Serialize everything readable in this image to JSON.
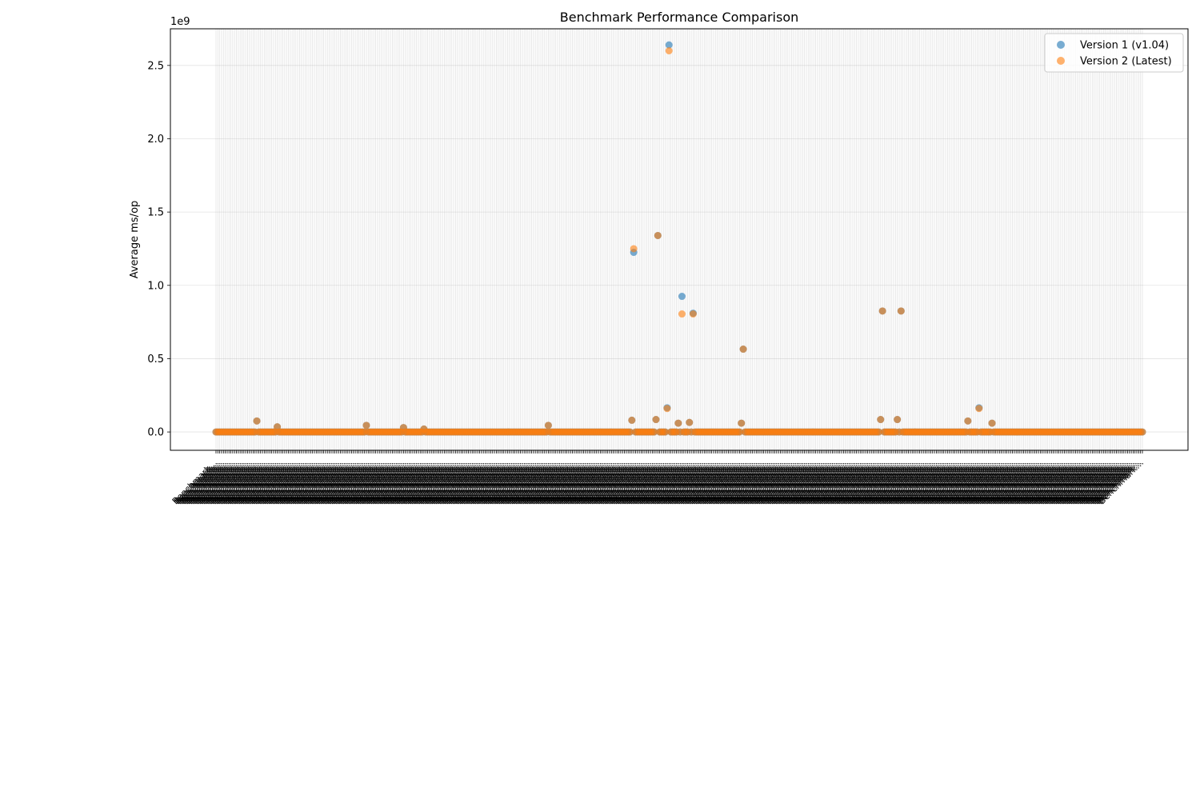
{
  "chart_data": {
    "type": "scatter",
    "title": "Benchmark Performance Comparison",
    "xlabel": "",
    "ylabel": "Average ms/op",
    "y_offset_text": "1e9",
    "ylim": [
      -125000000,
      2750000000
    ],
    "yticks": [
      0,
      500000000,
      1000000000,
      1500000000,
      2000000000,
      2500000000
    ],
    "ytick_labels": [
      "0.0",
      "0.5",
      "1.0",
      "1.5",
      "2.0",
      "2.5"
    ],
    "x_category_count": 500,
    "x_tick_label_text": "Benchmark…",
    "x_tick_rotation": "45deg",
    "grid": true,
    "legend_position": "top-right",
    "series": [
      {
        "name": "Version 1 (v1.04)",
        "color": "#1f77b4",
        "outliers": [
          {
            "x": 22,
            "y": 75000000
          },
          {
            "x": 33,
            "y": 35000000
          },
          {
            "x": 81,
            "y": 45000000
          },
          {
            "x": 101,
            "y": 30000000
          },
          {
            "x": 112,
            "y": 20000000
          },
          {
            "x": 179,
            "y": 45000000
          },
          {
            "x": 224,
            "y": 80000000
          },
          {
            "x": 225,
            "y": 1225000000
          },
          {
            "x": 237,
            "y": 85000000
          },
          {
            "x": 238,
            "y": 1340000000
          },
          {
            "x": 243,
            "y": 165000000
          },
          {
            "x": 244,
            "y": 2640000000
          },
          {
            "x": 249,
            "y": 60000000
          },
          {
            "x": 251,
            "y": 925000000
          },
          {
            "x": 255,
            "y": 65000000
          },
          {
            "x": 257,
            "y": 810000000
          },
          {
            "x": 283,
            "y": 60000000
          },
          {
            "x": 284,
            "y": 565000000
          },
          {
            "x": 358,
            "y": 85000000
          },
          {
            "x": 359,
            "y": 825000000
          },
          {
            "x": 367,
            "y": 85000000
          },
          {
            "x": 369,
            "y": 825000000
          },
          {
            "x": 405,
            "y": 75000000
          },
          {
            "x": 411,
            "y": 165000000
          },
          {
            "x": 418,
            "y": 60000000
          }
        ]
      },
      {
        "name": "Version 2 (Latest)",
        "color": "#ff7f0e",
        "outliers": [
          {
            "x": 22,
            "y": 75000000
          },
          {
            "x": 33,
            "y": 35000000
          },
          {
            "x": 81,
            "y": 45000000
          },
          {
            "x": 101,
            "y": 30000000
          },
          {
            "x": 112,
            "y": 20000000
          },
          {
            "x": 179,
            "y": 45000000
          },
          {
            "x": 224,
            "y": 80000000
          },
          {
            "x": 225,
            "y": 1250000000
          },
          {
            "x": 237,
            "y": 85000000
          },
          {
            "x": 238,
            "y": 1340000000
          },
          {
            "x": 243,
            "y": 160000000
          },
          {
            "x": 244,
            "y": 2600000000
          },
          {
            "x": 249,
            "y": 60000000
          },
          {
            "x": 251,
            "y": 805000000
          },
          {
            "x": 255,
            "y": 65000000
          },
          {
            "x": 257,
            "y": 805000000
          },
          {
            "x": 283,
            "y": 60000000
          },
          {
            "x": 284,
            "y": 565000000
          },
          {
            "x": 358,
            "y": 85000000
          },
          {
            "x": 359,
            "y": 825000000
          },
          {
            "x": 367,
            "y": 85000000
          },
          {
            "x": 369,
            "y": 825000000
          },
          {
            "x": 405,
            "y": 75000000
          },
          {
            "x": 411,
            "y": 160000000
          },
          {
            "x": 418,
            "y": 60000000
          }
        ]
      }
    ],
    "baseline_value": 0
  }
}
